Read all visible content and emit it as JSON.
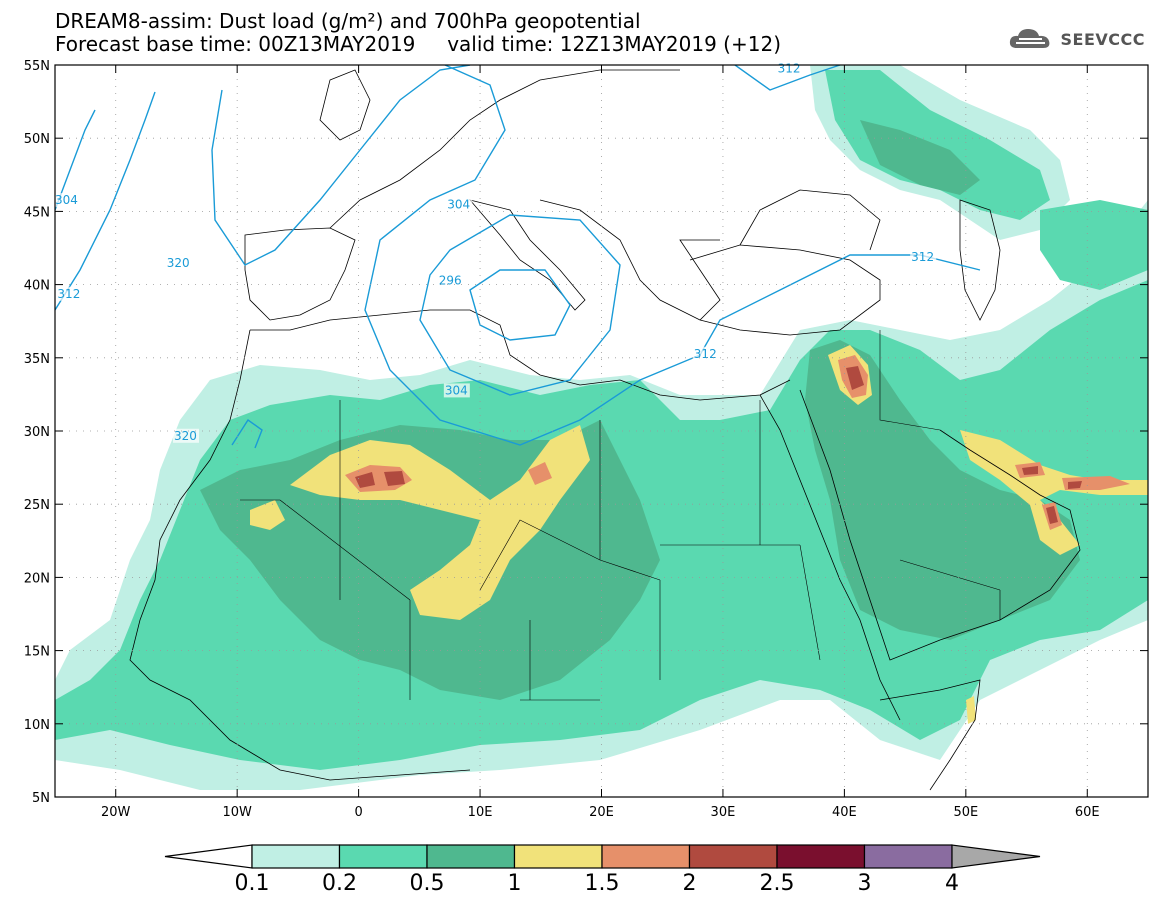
{
  "title": {
    "line1": "DREAM8-assim: Dust load (g/m²) and 700hPa geopotential",
    "line2": "Forecast base time: 00Z13MAY2019     valid time: 12Z13MAY2019 (+12)"
  },
  "brand": {
    "name": "SEEVCCC",
    "icon": "cloud-icon"
  },
  "map": {
    "lon_range": [
      -25,
      65
    ],
    "lat_range": [
      5,
      55
    ],
    "x_ticks": [
      {
        "lon": -20,
        "label": "20W"
      },
      {
        "lon": -10,
        "label": "10W"
      },
      {
        "lon": 0,
        "label": "0"
      },
      {
        "lon": 10,
        "label": "10E"
      },
      {
        "lon": 20,
        "label": "20E"
      },
      {
        "lon": 30,
        "label": "30E"
      },
      {
        "lon": 40,
        "label": "40E"
      },
      {
        "lon": 50,
        "label": "50E"
      },
      {
        "lon": 60,
        "label": "60E"
      }
    ],
    "y_ticks": [
      {
        "lat": 55,
        "label": "55N"
      },
      {
        "lat": 50,
        "label": "50N"
      },
      {
        "lat": 45,
        "label": "45N"
      },
      {
        "lat": 40,
        "label": "40N"
      },
      {
        "lat": 35,
        "label": "35N"
      },
      {
        "lat": 30,
        "label": "30N"
      },
      {
        "lat": 25,
        "label": "25N"
      },
      {
        "lat": 20,
        "label": "20N"
      },
      {
        "lat": 15,
        "label": "15N"
      },
      {
        "lat": 10,
        "label": "10N"
      },
      {
        "lat": 5,
        "label": "5N"
      }
    ],
    "contour_labels": [
      {
        "text": "312",
        "lon": 34.5,
        "lat": 54.5
      },
      {
        "text": "304",
        "lon": -25,
        "lat": 45.5
      },
      {
        "text": "312",
        "lon": -24.8,
        "lat": 39.1
      },
      {
        "text": "320",
        "lon": -15.8,
        "lat": 41.2
      },
      {
        "text": "304",
        "lon": 7.3,
        "lat": 45.2
      },
      {
        "text": "296",
        "lon": 6.6,
        "lat": 40.0
      },
      {
        "text": "312",
        "lon": 45.5,
        "lat": 41.6
      },
      {
        "text": "312",
        "lon": 27.6,
        "lat": 35.0
      },
      {
        "text": "304",
        "lon": 7.1,
        "lat": 32.5
      },
      {
        "text": "320",
        "lon": -15.2,
        "lat": 29.4
      }
    ],
    "dust_palette": [
      "#c0efe4",
      "#5ad9b0",
      "#4fb88f",
      "#f1e27a",
      "#e6906a",
      "#b04a3f",
      "#7a0f2e",
      "#8a6ca0"
    ],
    "contour_color": "#1a9bd7"
  },
  "legend": {
    "labels": [
      "0.1",
      "0.2",
      "0.5",
      "1",
      "1.5",
      "2",
      "2.5",
      "3",
      "4"
    ],
    "colors": [
      "#c0efe4",
      "#5ad9b0",
      "#4fb88f",
      "#f1e27a",
      "#e6906a",
      "#b04a3f",
      "#7a0f2e",
      "#8a6ca0"
    ],
    "left_arrow_color": "#ffffff",
    "right_arrow_color": "#a8a8a8"
  }
}
